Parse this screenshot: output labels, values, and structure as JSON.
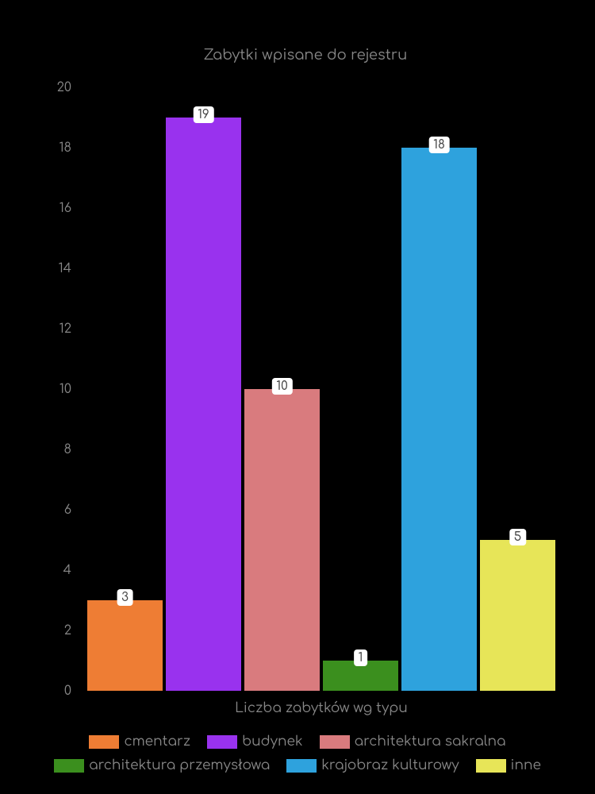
{
  "chart": {
    "type": "bar",
    "title": "Zabytki wpisane do rejestru",
    "title_fontsize": 18,
    "title_color": "#888888",
    "xlabel": "Liczba zabytków wg typu",
    "xlabel_fontsize": 17,
    "background_color": "#000000",
    "text_color": "#888888",
    "ylim": [
      0,
      20
    ],
    "ytick_step": 2,
    "yticks": [
      0,
      2,
      4,
      6,
      8,
      10,
      12,
      14,
      16,
      18,
      20
    ],
    "label_fontsize": 16,
    "categories": [
      "cmentarz",
      "budynek",
      "architektura sakralna",
      "architektura przemysłowa",
      "krajobraz kulturowy",
      "inne"
    ],
    "values": [
      3,
      19,
      10,
      1,
      18,
      5
    ],
    "bar_colors": [
      "#ee7d34",
      "#9932ee",
      "#d97b7e",
      "#3b8f1e",
      "#2ea2dd",
      "#e7e558"
    ],
    "bar_label_bg": "#ffffff",
    "bar_label_color": "#444444",
    "bar_width": 0.9,
    "legend_swatch_width": 38,
    "legend_swatch_height": 17
  }
}
